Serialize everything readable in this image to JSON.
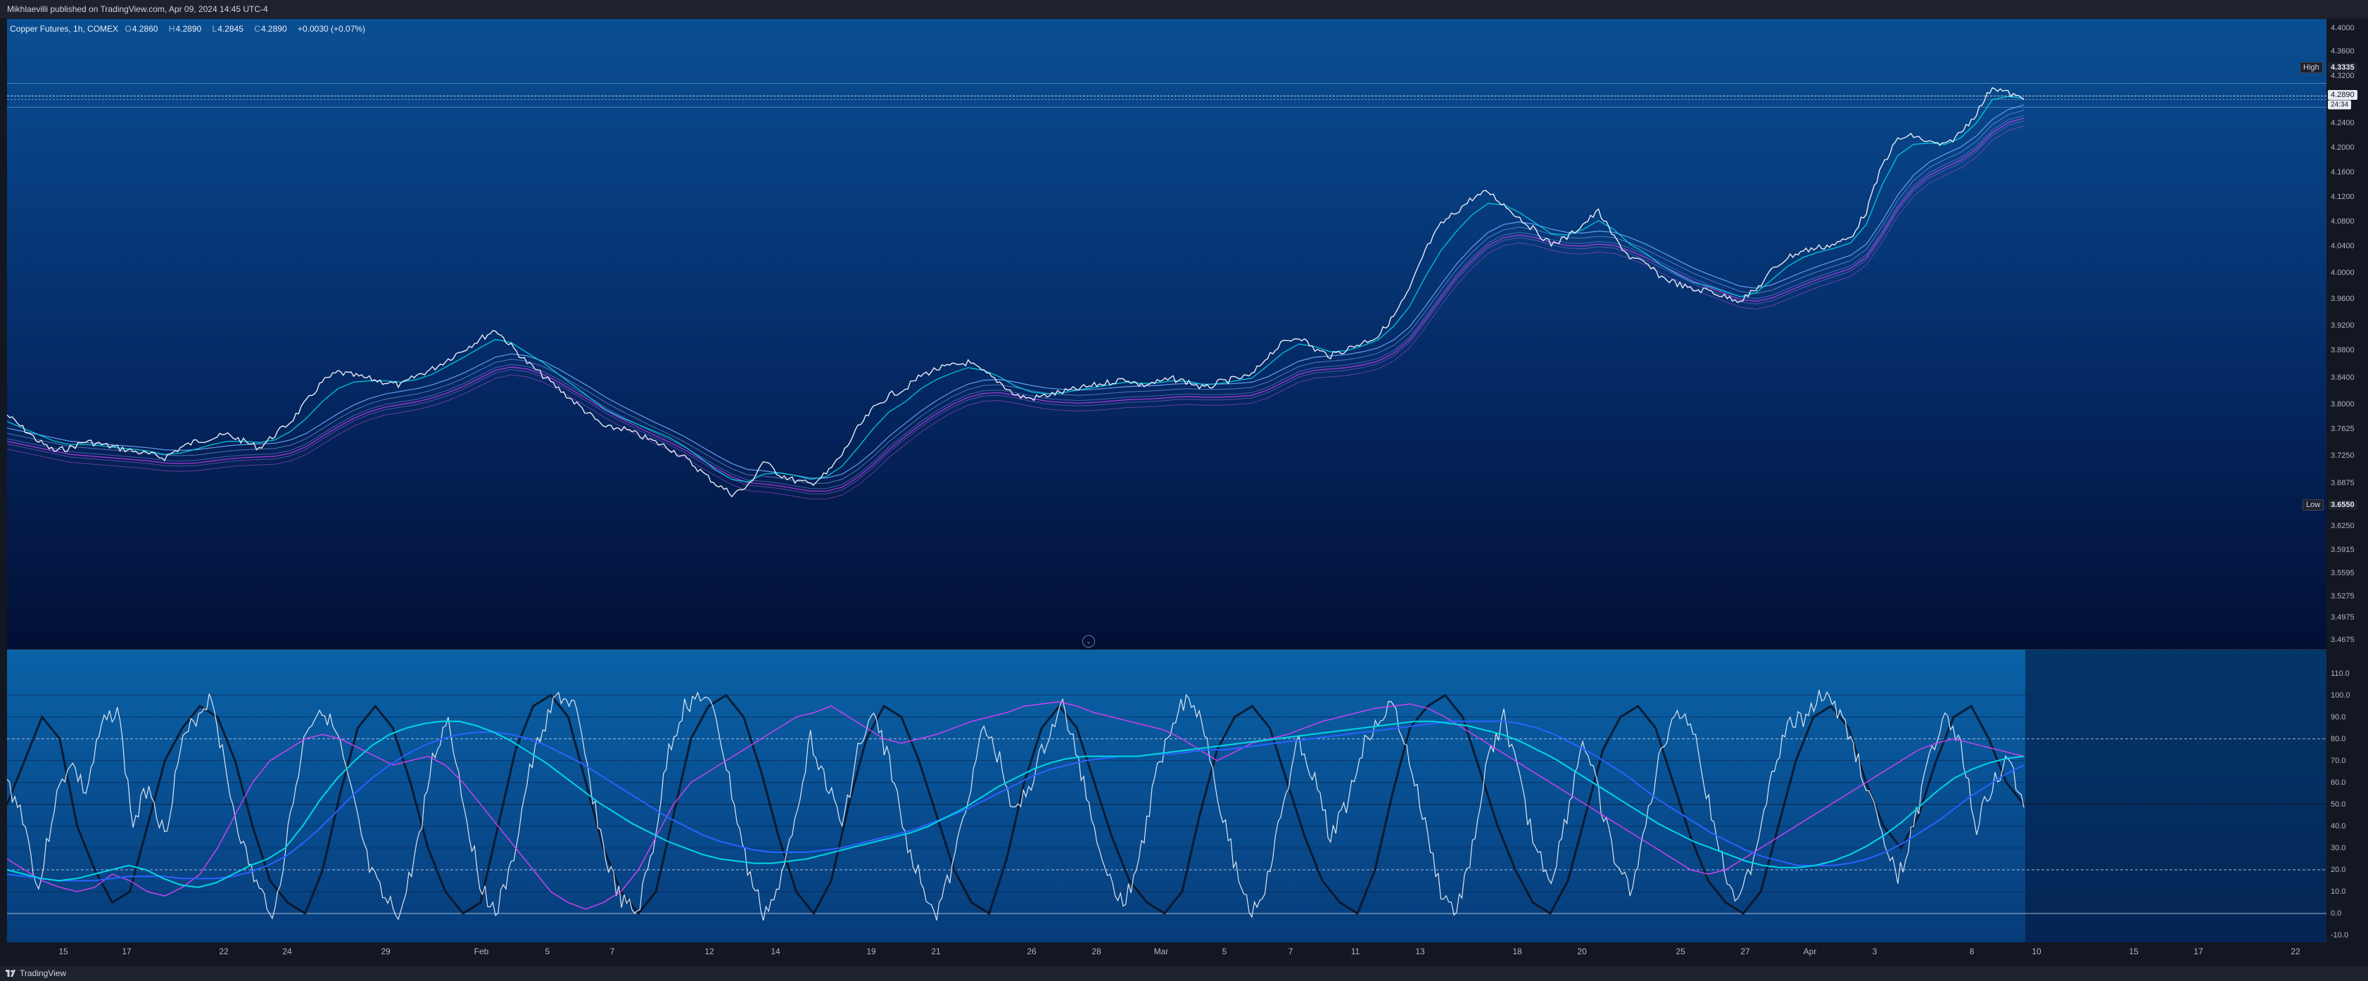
{
  "header": {
    "published_by": "Mikhlaevilli published on TradingView.com, Apr 09, 2024 14:45 UTC-4"
  },
  "legend": {
    "symbol": "Copper Futures, 1h, COMEX",
    "open_label": "O",
    "open": "4.2860",
    "high_label": "H",
    "high": "4.2890",
    "low_label": "L",
    "low": "4.2845",
    "close_label": "C",
    "close": "4.2890",
    "change": "+0.0030 (+0.07%)"
  },
  "markers": {
    "high_label": "High",
    "high_value": "4.3335",
    "low_label": "Low",
    "low_value": "3.6550",
    "last_price": "4.2890",
    "countdown": "24:34"
  },
  "footer": {
    "brand": "TradingView"
  },
  "colors": {
    "price_line": "#e8ecf5",
    "ema_cyan": "#00d6e6",
    "ema_blue": "#2962ff",
    "magenta": "#e040fb",
    "osc_white": "#dfe6f2",
    "osc_black": "#0b1220"
  },
  "chart_data": [
    {
      "type": "line",
      "title": "",
      "x_ticks": [
        "15",
        "17",
        "22",
        "24",
        "29",
        "Feb",
        "5",
        "7",
        "12",
        "14",
        "19",
        "21",
        "26",
        "28",
        "Mar",
        "5",
        "7",
        "11",
        "13",
        "18",
        "20",
        "25",
        "27",
        "Apr",
        "3",
        "8",
        "10",
        "15",
        "17",
        "22"
      ],
      "y_ticks": [
        "4.4000",
        "4.3600",
        "4.3200",
        "4.2400",
        "4.2000",
        "4.1600",
        "4.1200",
        "4.0800",
        "4.0400",
        "4.0000",
        "3.9600",
        "3.9200",
        "3.8800",
        "3.8400",
        "3.8000",
        "3.7625",
        "3.7250",
        "3.6875",
        "3.6250",
        "3.5915",
        "3.5595",
        "3.5275",
        "3.4975",
        "3.4675"
      ],
      "ylim": [
        3.4675,
        4.4
      ],
      "series": [
        {
          "values": [
            3.81,
            3.79,
            3.77,
            3.755,
            3.76,
            3.77,
            3.765,
            3.76,
            3.755,
            3.75,
            3.745,
            3.76,
            3.77,
            3.775,
            3.78,
            3.77,
            3.76,
            3.78,
            3.8,
            3.83,
            3.86,
            3.875,
            3.87,
            3.865,
            3.86,
            3.855,
            3.87,
            3.88,
            3.895,
            3.91,
            3.925,
            3.94,
            3.915,
            3.89,
            3.87,
            3.85,
            3.83,
            3.81,
            3.79,
            3.79,
            3.78,
            3.77,
            3.76,
            3.745,
            3.725,
            3.705,
            3.69,
            3.7,
            3.74,
            3.72,
            3.71,
            3.705,
            3.72,
            3.75,
            3.79,
            3.82,
            3.84,
            3.85,
            3.87,
            3.88,
            3.885,
            3.89,
            3.875,
            3.86,
            3.84,
            3.835,
            3.84,
            3.845,
            3.85,
            3.855,
            3.86,
            3.865,
            3.855,
            3.86,
            3.865,
            3.86,
            3.85,
            3.86,
            3.865,
            3.87,
            3.9,
            3.92,
            3.93,
            3.91,
            3.9,
            3.91,
            3.92,
            3.93,
            3.96,
            4.0,
            4.06,
            4.1,
            4.12,
            4.14,
            4.15,
            4.13,
            4.11,
            4.09,
            4.07,
            4.08,
            4.1,
            4.12,
            4.08,
            4.05,
            4.04,
            4.02,
            4.01,
            4.0,
            4.0,
            3.99,
            3.985,
            4.0,
            4.03,
            4.05,
            4.06,
            4.065,
            4.07,
            4.08,
            4.12,
            4.19,
            4.23,
            4.235,
            4.225,
            4.22,
            4.24,
            4.27,
            4.31,
            4.3,
            4.29
          ]
        },
        {
          "name": "",
          "values": [
            3.8,
            3.79,
            3.78,
            3.77,
            3.765,
            3.765,
            3.763,
            3.76,
            3.758,
            3.755,
            3.75,
            3.752,
            3.758,
            3.765,
            3.77,
            3.77,
            3.768,
            3.772,
            3.785,
            3.805,
            3.83,
            3.85,
            3.86,
            3.862,
            3.862,
            3.86,
            3.864,
            3.872,
            3.885,
            3.898,
            3.912,
            3.925,
            3.92,
            3.905,
            3.89,
            3.872,
            3.854,
            3.836,
            3.818,
            3.806,
            3.796,
            3.786,
            3.776,
            3.762,
            3.745,
            3.726,
            3.712,
            3.708,
            3.72,
            3.722,
            3.718,
            3.712,
            3.716,
            3.732,
            3.76,
            3.79,
            3.815,
            3.83,
            3.85,
            3.864,
            3.874,
            3.882,
            3.878,
            3.868,
            3.854,
            3.845,
            3.842,
            3.844,
            3.848,
            3.852,
            3.856,
            3.86,
            3.858,
            3.859,
            3.862,
            3.861,
            3.856,
            3.858,
            3.862,
            3.866,
            3.885,
            3.905,
            3.918,
            3.914,
            3.906,
            3.908,
            3.915,
            3.924,
            3.945,
            3.975,
            4.02,
            4.06,
            4.09,
            4.115,
            4.132,
            4.13,
            4.118,
            4.102,
            4.086,
            4.084,
            4.092,
            4.106,
            4.092,
            4.07,
            4.056,
            4.038,
            4.024,
            4.012,
            4.006,
            3.998,
            3.99,
            3.996,
            4.016,
            4.036,
            4.05,
            4.058,
            4.064,
            4.072,
            4.1,
            4.16,
            4.205,
            4.222,
            4.224,
            4.222,
            4.232,
            4.255,
            4.29,
            4.295,
            4.292
          ]
        },
        {
          "name": "",
          "values": [
            3.79,
            3.785,
            3.78,
            3.775,
            3.77,
            3.768,
            3.766,
            3.764,
            3.762,
            3.76,
            3.757,
            3.756,
            3.757,
            3.76,
            3.763,
            3.765,
            3.766,
            3.767,
            3.772,
            3.782,
            3.797,
            3.812,
            3.825,
            3.835,
            3.842,
            3.846,
            3.85,
            3.856,
            3.864,
            3.874,
            3.886,
            3.898,
            3.903,
            3.9,
            3.892,
            3.88,
            3.866,
            3.852,
            3.837,
            3.824,
            3.812,
            3.8,
            3.789,
            3.777,
            3.763,
            3.749,
            3.736,
            3.727,
            3.725,
            3.722,
            3.718,
            3.714,
            3.714,
            3.72,
            3.735,
            3.755,
            3.778,
            3.797,
            3.816,
            3.832,
            3.846,
            3.857,
            3.863,
            3.864,
            3.86,
            3.855,
            3.851,
            3.849,
            3.848,
            3.849,
            3.851,
            3.853,
            3.854,
            3.855,
            3.857,
            3.858,
            3.857,
            3.857,
            3.858,
            3.86,
            3.868,
            3.88,
            3.892,
            3.898,
            3.9,
            3.902,
            3.906,
            3.912,
            3.924,
            3.944,
            3.975,
            4.008,
            4.04,
            4.066,
            4.088,
            4.1,
            4.104,
            4.1,
            4.093,
            4.088,
            4.087,
            4.09,
            4.088,
            4.08,
            4.07,
            4.058,
            4.046,
            4.034,
            4.024,
            4.015,
            4.006,
            4.003,
            4.008,
            4.018,
            4.028,
            4.037,
            4.045,
            4.053,
            4.07,
            4.105,
            4.145,
            4.175,
            4.195,
            4.207,
            4.218,
            4.235,
            4.26,
            4.275,
            4.282
          ]
        }
      ]
    },
    {
      "type": "line",
      "title": "",
      "y_ticks": [
        "110.0",
        "100.0",
        "90.0",
        "80.0",
        "70.0",
        "60.0",
        "50.0",
        "40.0",
        "30.0",
        "20.0",
        "10.0",
        "0.0",
        "-10.0"
      ],
      "ylim": [
        -10,
        115
      ],
      "levels": [
        80,
        50,
        20,
        0
      ],
      "series": [
        {
          "name": "",
          "values": [
            60,
            45,
            10,
            50,
            70,
            55,
            85,
            95,
            40,
            60,
            35,
            75,
            90,
            100,
            60,
            30,
            10,
            0,
            45,
            85,
            95,
            80,
            50,
            20,
            5,
            0,
            30,
            70,
            90,
            50,
            15,
            0,
            20,
            60,
            85,
            100,
            95,
            60,
            25,
            5,
            0,
            30,
            75,
            95,
            100,
            90,
            55,
            20,
            0,
            10,
            45,
            80,
            60,
            40,
            75,
            90,
            70,
            35,
            15,
            0,
            20,
            55,
            85,
            70,
            45,
            60,
            80,
            95,
            70,
            40,
            15,
            5,
            30,
            65,
            90,
            100,
            85,
            50,
            20,
            0,
            15,
            50,
            80,
            60,
            35,
            50,
            75,
            90,
            95,
            70,
            40,
            10,
            0,
            30,
            70,
            90,
            60,
            30,
            15,
            45,
            80,
            55,
            25,
            10,
            40,
            75,
            95,
            85,
            50,
            20,
            5,
            30,
            65,
            85,
            90,
            100,
            95,
            80,
            60,
            35,
            15,
            40,
            70,
            95,
            75,
            40,
            60,
            70,
            50
          ]
        },
        {
          "name": "",
          "values": [
            20,
            18,
            16,
            15,
            16,
            18,
            20,
            22,
            20,
            16,
            13,
            12,
            14,
            18,
            22,
            25,
            30,
            40,
            52,
            62,
            70,
            77,
            82,
            85,
            87,
            88,
            88,
            86,
            83,
            79,
            74,
            69,
            63,
            57,
            51,
            46,
            41,
            37,
            33,
            30,
            27,
            25,
            24,
            23,
            23,
            24,
            25,
            27,
            29,
            31,
            33,
            35,
            37,
            40,
            44,
            48,
            53,
            58,
            62,
            66,
            69,
            71,
            72,
            72,
            72,
            72,
            73,
            74,
            75,
            76,
            77,
            78,
            79,
            80,
            81,
            82,
            83,
            84,
            85,
            86,
            87,
            88,
            88,
            87,
            86,
            84,
            82,
            79,
            75,
            71,
            66,
            61,
            56,
            51,
            46,
            41,
            37,
            33,
            30,
            27,
            24,
            22,
            21,
            21,
            22,
            24,
            27,
            31,
            36,
            42,
            49,
            56,
            62,
            66,
            69,
            71,
            72
          ]
        },
        {
          "name": "",
          "values": [
            18,
            17,
            16,
            15,
            15,
            15,
            16,
            17,
            17,
            17,
            16,
            16,
            16,
            17,
            19,
            22,
            26,
            32,
            39,
            47,
            55,
            62,
            68,
            73,
            77,
            80,
            82,
            83,
            83,
            82,
            80,
            77,
            73,
            69,
            64,
            59,
            54,
            49,
            44,
            40,
            36,
            33,
            31,
            29,
            28,
            28,
            28,
            29,
            30,
            32,
            34,
            36,
            38,
            41,
            44,
            47,
            51,
            55,
            59,
            63,
            66,
            68,
            70,
            71,
            72,
            72,
            73,
            73,
            74,
            75,
            75,
            76,
            77,
            78,
            79,
            80,
            81,
            82,
            83,
            84,
            85,
            86,
            87,
            88,
            88,
            88,
            88,
            87,
            85,
            82,
            78,
            74,
            69,
            64,
            58,
            52,
            47,
            42,
            37,
            33,
            29,
            26,
            24,
            22,
            22,
            22,
            23,
            25,
            28,
            32,
            37,
            42,
            48,
            54,
            59,
            64,
            68
          ]
        },
        {
          "name": "",
          "values": [
            25,
            20,
            15,
            12,
            10,
            12,
            18,
            15,
            10,
            8,
            12,
            18,
            30,
            45,
            60,
            70,
            75,
            80,
            82,
            80,
            76,
            72,
            68,
            70,
            72,
            68,
            60,
            50,
            40,
            30,
            20,
            10,
            5,
            2,
            5,
            10,
            20,
            35,
            50,
            60,
            65,
            70,
            75,
            80,
            85,
            90,
            92,
            95,
            90,
            85,
            80,
            78,
            80,
            82,
            85,
            88,
            90,
            92,
            95,
            96,
            97,
            95,
            92,
            90,
            88,
            86,
            84,
            80,
            75,
            70,
            74,
            78,
            80,
            82,
            85,
            88,
            90,
            92,
            94,
            95,
            96,
            94,
            90,
            85,
            80,
            75,
            70,
            65,
            60,
            55,
            50,
            45,
            40,
            35,
            30,
            25,
            20,
            18,
            20,
            25,
            30,
            35,
            40,
            45,
            50,
            55,
            60,
            65,
            70,
            75,
            78,
            80,
            78,
            76,
            74,
            72
          ]
        },
        {
          "name": "",
          "values": [
            50,
            70,
            90,
            80,
            40,
            20,
            5,
            10,
            40,
            70,
            85,
            95,
            90,
            70,
            40,
            15,
            5,
            0,
            20,
            55,
            85,
            95,
            85,
            60,
            30,
            10,
            0,
            5,
            40,
            75,
            95,
            100,
            90,
            60,
            30,
            10,
            0,
            10,
            45,
            80,
            95,
            100,
            90,
            65,
            35,
            10,
            0,
            15,
            50,
            80,
            95,
            90,
            70,
            45,
            20,
            5,
            0,
            25,
            60,
            85,
            95,
            85,
            60,
            35,
            15,
            5,
            0,
            10,
            45,
            75,
            90,
            95,
            85,
            60,
            35,
            15,
            5,
            0,
            20,
            55,
            85,
            95,
            100,
            90,
            65,
            40,
            20,
            5,
            0,
            15,
            45,
            75,
            90,
            95,
            85,
            60,
            35,
            15,
            5,
            0,
            10,
            40,
            70,
            90,
            95,
            85,
            60,
            40,
            30,
            45,
            70,
            90,
            95,
            80,
            60,
            50
          ]
        }
      ]
    }
  ]
}
